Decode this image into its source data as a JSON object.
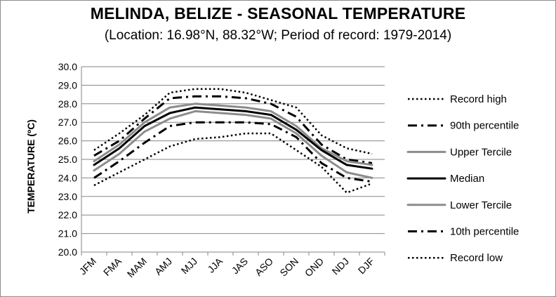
{
  "chart_data": {
    "type": "line",
    "title": "MELINDA, BELIZE - SEASONAL TEMPERATURE",
    "subtitle": "(Location: 16.98°N, 88.32°W; Period of record: 1979-2014)",
    "ylabel": "TEMPERATURE (ºC)",
    "xlabel": "",
    "categories": [
      "JFM",
      "FMA",
      "MAM",
      "AMJ",
      "MJJ",
      "JJA",
      "JAS",
      "ASO",
      "SON",
      "OND",
      "NDJ",
      "DJF"
    ],
    "ylim": [
      20,
      30
    ],
    "yticks": [
      "20.0",
      "21.0",
      "22.0",
      "23.0",
      "24.0",
      "25.0",
      "26.0",
      "27.0",
      "28.0",
      "29.0",
      "30.0"
    ],
    "grid": true,
    "legend_position": "right",
    "series": [
      {
        "name": "Record high",
        "color": "#000000",
        "style": "dotted",
        "width": 2.5,
        "values": [
          25.5,
          26.4,
          27.4,
          28.6,
          28.8,
          28.8,
          28.6,
          28.2,
          27.8,
          26.3,
          25.6,
          25.3
        ]
      },
      {
        "name": "90th percentile",
        "color": "#000000",
        "style": "dashdot",
        "width": 3,
        "values": [
          25.2,
          26.0,
          27.2,
          28.3,
          28.4,
          28.4,
          28.3,
          28.0,
          27.3,
          25.8,
          25.0,
          24.8
        ]
      },
      {
        "name": "Upper Tercile",
        "color": "#8c8c8c",
        "style": "solid",
        "width": 3,
        "values": [
          24.9,
          25.8,
          27.0,
          27.8,
          28.0,
          27.9,
          27.8,
          27.6,
          26.8,
          25.6,
          24.9,
          24.7
        ]
      },
      {
        "name": "Median",
        "color": "#000000",
        "style": "solid",
        "width": 3,
        "values": [
          24.7,
          25.6,
          26.8,
          27.5,
          27.8,
          27.7,
          27.6,
          27.4,
          26.6,
          25.5,
          24.7,
          24.5
        ]
      },
      {
        "name": "Lower Tercile",
        "color": "#8c8c8c",
        "style": "solid",
        "width": 3,
        "values": [
          24.4,
          25.3,
          26.5,
          27.2,
          27.6,
          27.5,
          27.4,
          27.2,
          26.4,
          25.2,
          24.3,
          24.0
        ]
      },
      {
        "name": "10th percentile",
        "color": "#000000",
        "style": "dashdot",
        "width": 3,
        "values": [
          24.0,
          24.9,
          25.9,
          26.8,
          27.0,
          27.0,
          27.0,
          26.9,
          26.2,
          24.8,
          24.0,
          23.8
        ]
      },
      {
        "name": "Record low",
        "color": "#000000",
        "style": "dotted",
        "width": 2.5,
        "values": [
          23.6,
          24.3,
          25.0,
          25.7,
          26.1,
          26.2,
          26.4,
          26.4,
          25.5,
          24.6,
          23.2,
          23.7
        ]
      }
    ]
  }
}
